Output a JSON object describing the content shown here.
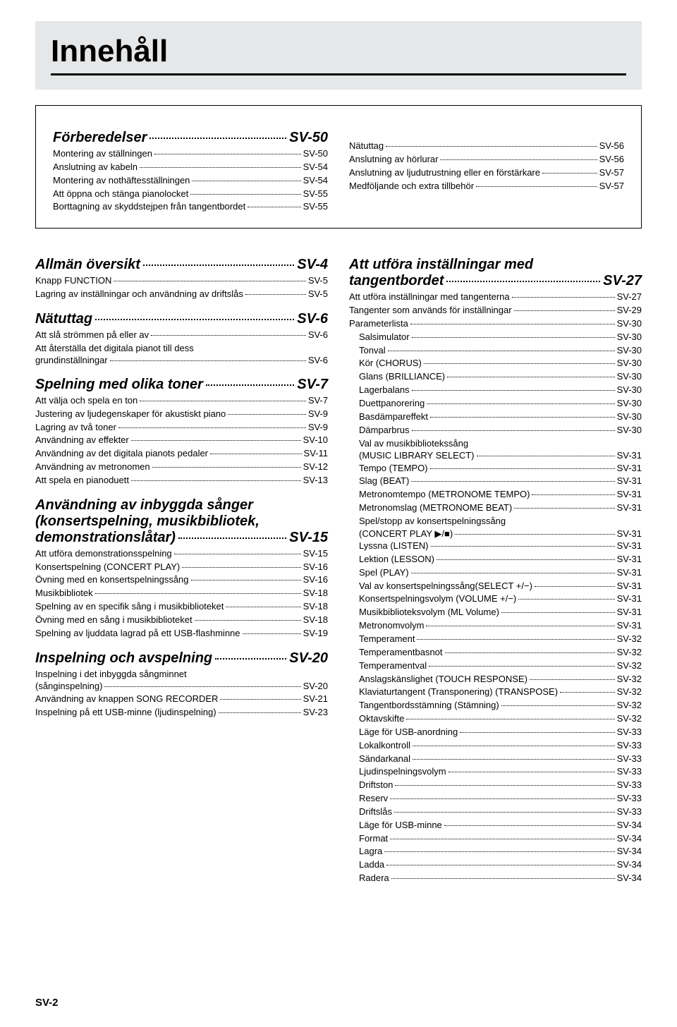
{
  "title": "Innehåll",
  "footer_page": "SV-2",
  "top": {
    "left": {
      "heading": {
        "label": "Förberedelser",
        "page": "SV-50"
      },
      "entries": [
        {
          "label": "Montering av ställningen",
          "page": "SV-50"
        },
        {
          "label": "Anslutning av kabeln",
          "page": "SV-54"
        },
        {
          "label": "Montering av nothäftesställningen",
          "page": "SV-54"
        },
        {
          "label": "Att öppna och stänga pianolocket",
          "page": "SV-55"
        },
        {
          "label": "Borttagning av skyddstejpen från tangentbordet",
          "page": "SV-55"
        }
      ]
    },
    "right": {
      "entries": [
        {
          "label": "Nätuttag",
          "page": "SV-56"
        },
        {
          "label": "Anslutning av hörlurar",
          "page": "SV-56"
        },
        {
          "label": "Anslutning av ljudutrustning eller en förstärkare",
          "page": "SV-57"
        },
        {
          "label": "Medföljande och extra tillbehör",
          "page": "SV-57"
        }
      ]
    }
  },
  "left_col": [
    {
      "type": "heading",
      "label": "Allmän översikt",
      "page": "SV-4"
    },
    {
      "type": "entry",
      "label": "Knapp FUNCTION",
      "page": "SV-5"
    },
    {
      "type": "entry",
      "label": "Lagring av inställningar och användning av driftslås",
      "page": "SV-5"
    },
    {
      "type": "heading",
      "label": "Nätuttag",
      "page": "SV-6"
    },
    {
      "type": "entry",
      "label": "Att slå strömmen på eller av",
      "page": "SV-6"
    },
    {
      "type": "entry_multi",
      "lines": [
        "Att återställa det digitala pianot till dess"
      ],
      "last": "grundinställningar",
      "page": "SV-6"
    },
    {
      "type": "heading",
      "label": "Spelning med olika toner",
      "page": "SV-7"
    },
    {
      "type": "entry",
      "label": "Att välja och spela en ton",
      "page": "SV-7"
    },
    {
      "type": "entry",
      "label": "Justering av ljudegenskaper för akustiskt piano",
      "page": "SV-9"
    },
    {
      "type": "entry",
      "label": "Lagring av två toner",
      "page": "SV-9"
    },
    {
      "type": "entry",
      "label": "Användning av effekter",
      "page": "SV-10"
    },
    {
      "type": "entry",
      "label": "Användning av det digitala pianots pedaler",
      "page": "SV-11"
    },
    {
      "type": "entry",
      "label": "Användning av metronomen",
      "page": "SV-12"
    },
    {
      "type": "entry",
      "label": "Att spela en pianoduett",
      "page": "SV-13"
    },
    {
      "type": "heading_multi",
      "lines": [
        "Användning av inbyggda sånger",
        "(konsertspelning, musikbibliotek,"
      ],
      "last": "demonstrationslåtar)",
      "page": "SV-15"
    },
    {
      "type": "entry",
      "label": "Att utföra demonstrationsspelning",
      "page": "SV-15"
    },
    {
      "type": "entry",
      "label": "Konsertspelning (CONCERT PLAY)",
      "page": "SV-16"
    },
    {
      "type": "entry",
      "label": "Övning med en konsertspelningssång",
      "page": "SV-16"
    },
    {
      "type": "entry",
      "label": "Musikbibliotek",
      "page": "SV-18"
    },
    {
      "type": "entry",
      "label": "Spelning av en specifik sång i musikbiblioteket",
      "page": "SV-18"
    },
    {
      "type": "entry",
      "label": "Övning med en sång i musikbiblioteket",
      "page": "SV-18"
    },
    {
      "type": "entry",
      "label": "Spelning av ljuddata lagrad på ett USB-flashminne",
      "page": "SV-19"
    },
    {
      "type": "heading",
      "label": "Inspelning och avspelning",
      "page": "SV-20"
    },
    {
      "type": "entry_multi",
      "lines": [
        "Inspelning i det inbyggda sångminnet"
      ],
      "last": "(sånginspelning)",
      "page": "SV-20"
    },
    {
      "type": "entry",
      "label": "Användning av knappen SONG RECORDER",
      "page": "SV-21"
    },
    {
      "type": "entry",
      "label": "Inspelning på ett USB-minne (ljudinspelning)",
      "page": "SV-23"
    }
  ],
  "right_col": [
    {
      "type": "heading_multi",
      "lines": [
        "Att utföra inställningar med"
      ],
      "last": "tangentbordet",
      "page": "SV-27"
    },
    {
      "type": "entry",
      "label": "Att utföra inställningar med tangenterna",
      "page": "SV-27"
    },
    {
      "type": "entry",
      "label": "Tangenter som används för inställningar",
      "page": "SV-29"
    },
    {
      "type": "entry",
      "label": "Parameterlista",
      "page": "SV-30"
    },
    {
      "type": "entry",
      "indent": 1,
      "label": "Salsimulator",
      "page": "SV-30"
    },
    {
      "type": "entry",
      "indent": 1,
      "label": "Tonval",
      "page": "SV-30"
    },
    {
      "type": "entry",
      "indent": 1,
      "label": "Kör (CHORUS)",
      "page": "SV-30"
    },
    {
      "type": "entry",
      "indent": 1,
      "label": "Glans (BRILLIANCE)",
      "page": "SV-30"
    },
    {
      "type": "entry",
      "indent": 1,
      "label": "Lagerbalans",
      "page": "SV-30"
    },
    {
      "type": "entry",
      "indent": 1,
      "label": "Duettpanorering",
      "page": "SV-30"
    },
    {
      "type": "entry",
      "indent": 1,
      "label": "Basdämpareffekt",
      "page": "SV-30"
    },
    {
      "type": "entry",
      "indent": 1,
      "label": "Dämparbrus",
      "page": "SV-30"
    },
    {
      "type": "entry_multi",
      "indent": 1,
      "lines": [
        "Val av musikbibliotekssång"
      ],
      "last": "(MUSIC LIBRARY SELECT)",
      "page": "SV-31"
    },
    {
      "type": "entry",
      "indent": 1,
      "label": "Tempo (TEMPO)",
      "page": "SV-31"
    },
    {
      "type": "entry",
      "indent": 1,
      "label": "Slag (BEAT)",
      "page": "SV-31"
    },
    {
      "type": "entry",
      "indent": 1,
      "label": "Metronomtempo (METRONOME TEMPO)",
      "page": "SV-31"
    },
    {
      "type": "entry",
      "indent": 1,
      "label": "Metronomslag (METRONOME BEAT)",
      "page": "SV-31"
    },
    {
      "type": "entry_multi",
      "indent": 1,
      "lines": [
        "Spel/stopp av konsertspelningssång"
      ],
      "last": "(CONCERT PLAY ▶/■)",
      "page": "SV-31"
    },
    {
      "type": "entry",
      "indent": 1,
      "label": "Lyssna (LISTEN)",
      "page": "SV-31"
    },
    {
      "type": "entry",
      "indent": 1,
      "label": "Lektion (LESSON)",
      "page": "SV-31"
    },
    {
      "type": "entry",
      "indent": 1,
      "label": "Spel (PLAY)",
      "page": "SV-31"
    },
    {
      "type": "entry",
      "indent": 1,
      "label": "Val av konsertspelningssång(SELECT +/−)",
      "page": "SV-31"
    },
    {
      "type": "entry",
      "indent": 1,
      "label": "Konsertspelningsvolym (VOLUME +/−)",
      "page": "SV-31"
    },
    {
      "type": "entry",
      "indent": 1,
      "label": "Musikbiblioteksvolym (ML Volume)",
      "page": "SV-31"
    },
    {
      "type": "entry",
      "indent": 1,
      "label": "Metronomvolym",
      "page": "SV-31"
    },
    {
      "type": "entry",
      "indent": 1,
      "label": "Temperament",
      "page": "SV-32"
    },
    {
      "type": "entry",
      "indent": 1,
      "label": "Temperamentbasnot",
      "page": "SV-32"
    },
    {
      "type": "entry",
      "indent": 1,
      "label": "Temperamentval",
      "page": "SV-32"
    },
    {
      "type": "entry",
      "indent": 1,
      "label": "Anslagskänslighet (TOUCH RESPONSE)",
      "page": "SV-32"
    },
    {
      "type": "entry",
      "indent": 1,
      "label": "Klaviaturtangent (Transponering) (TRANSPOSE)",
      "page": "SV-32"
    },
    {
      "type": "entry",
      "indent": 1,
      "label": "Tangentbordsstämning (Stämning)",
      "page": "SV-32"
    },
    {
      "type": "entry",
      "indent": 1,
      "label": "Oktavskifte",
      "page": "SV-32"
    },
    {
      "type": "entry",
      "indent": 1,
      "label": "Läge för USB-anordning",
      "page": "SV-33"
    },
    {
      "type": "entry",
      "indent": 1,
      "label": "Lokalkontroll",
      "page": "SV-33"
    },
    {
      "type": "entry",
      "indent": 1,
      "label": "Sändarkanal",
      "page": "SV-33"
    },
    {
      "type": "entry",
      "indent": 1,
      "label": "Ljudinspelningsvolym",
      "page": "SV-33"
    },
    {
      "type": "entry",
      "indent": 1,
      "label": "Driftston",
      "page": "SV-33"
    },
    {
      "type": "entry",
      "indent": 1,
      "label": "Reserv",
      "page": "SV-33"
    },
    {
      "type": "entry",
      "indent": 1,
      "label": "Driftslås",
      "page": "SV-33"
    },
    {
      "type": "entry",
      "indent": 1,
      "label": "Läge för USB-minne",
      "page": "SV-34"
    },
    {
      "type": "entry",
      "indent": 1,
      "label": "Format",
      "page": "SV-34"
    },
    {
      "type": "entry",
      "indent": 1,
      "label": "Lagra",
      "page": "SV-34"
    },
    {
      "type": "entry",
      "indent": 1,
      "label": "Ladda",
      "page": "SV-34"
    },
    {
      "type": "entry",
      "indent": 1,
      "label": "Radera",
      "page": "SV-34"
    }
  ]
}
